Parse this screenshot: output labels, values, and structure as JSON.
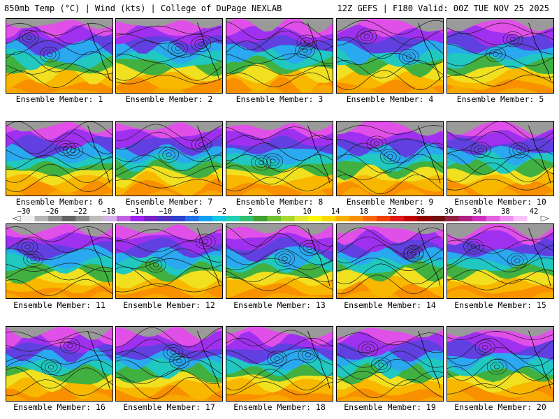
{
  "header": {
    "left_title": "850mb Temp (°C) | Wind (kts) | College of DuPage NEXLAB",
    "right_title": "12Z GEFS | F180 Valid: 00Z TUE NOV 25 2025"
  },
  "panels": [
    {
      "caption": "Ensemble Member: 1"
    },
    {
      "caption": "Ensemble Member: 2"
    },
    {
      "caption": "Ensemble Member: 3"
    },
    {
      "caption": "Ensemble Member: 4"
    },
    {
      "caption": "Ensemble Member: 5"
    },
    {
      "caption": "Ensemble Member: 6"
    },
    {
      "caption": "Ensemble Member: 7"
    },
    {
      "caption": "Ensemble Member: 8"
    },
    {
      "caption": "Ensemble Member: 9"
    },
    {
      "caption": "Ensemble Member: 10"
    },
    {
      "caption": "Ensemble Member: 11"
    },
    {
      "caption": "Ensemble Member: 12"
    },
    {
      "caption": "Ensemble Member: 13"
    },
    {
      "caption": "Ensemble Member: 14"
    },
    {
      "caption": "Ensemble Member: 15"
    },
    {
      "caption": "Ensemble Member: 16"
    },
    {
      "caption": "Ensemble Member: 17"
    },
    {
      "caption": "Ensemble Member: 18"
    },
    {
      "caption": "Ensemble Member: 19"
    },
    {
      "caption": "Ensemble Member: 20"
    }
  ],
  "colorbar": {
    "labels": [
      "−30",
      "−26",
      "−22",
      "−18",
      "−14",
      "−10",
      "−6",
      "−2",
      "2",
      "6",
      "10",
      "14",
      "18",
      "22",
      "26",
      "30",
      "34",
      "38",
      "42"
    ],
    "colors": [
      "#f0f0f0",
      "#b4b4b4",
      "#8c8c8c",
      "#646464",
      "#8a8a8a",
      "#bcbcbc",
      "#d6b0e8",
      "#c060e0",
      "#a020f0",
      "#7820c8",
      "#5030c0",
      "#3040d0",
      "#2070e8",
      "#10a0f0",
      "#10c8e0",
      "#20d0b0",
      "#30c070",
      "#40a030",
      "#70c030",
      "#a8d830",
      "#e0e830",
      "#f8f800",
      "#f8d800",
      "#f8b000",
      "#f89000",
      "#f86800",
      "#f04000",
      "#e01818",
      "#c00000",
      "#900000",
      "#701010",
      "#902040",
      "#b02080",
      "#d030c0",
      "#e060e0",
      "#f090f0",
      "#f8c0f8",
      "#ffffff"
    ]
  }
}
